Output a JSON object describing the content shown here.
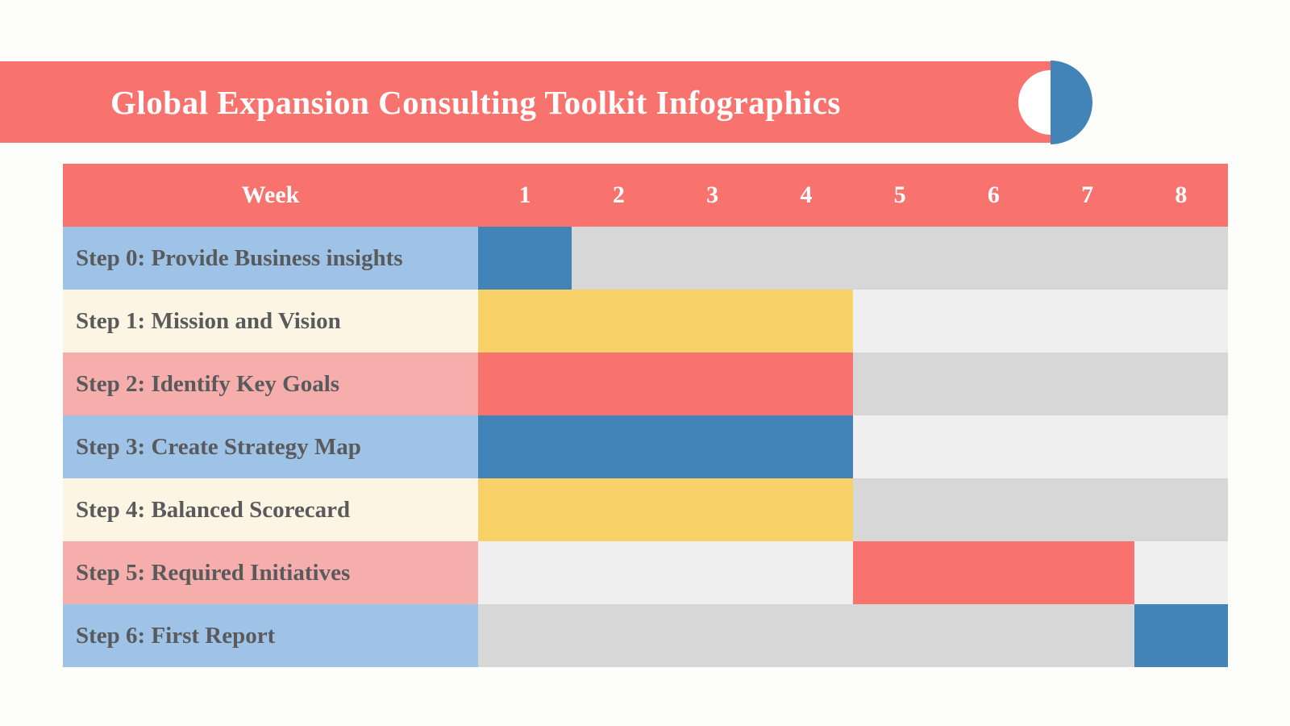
{
  "page": {
    "background": "#FDFDFC"
  },
  "banner": {
    "title": "Global Expansion Consulting Toolkit Infographics",
    "background": "#F9736E",
    "text_color": "#FFFFFF",
    "decoration": {
      "blue_half_circle_color": "#4284B8",
      "white_half_circle_color": "#FFFFFF"
    }
  },
  "colors": {
    "coral": "#F9736E",
    "steel_blue": "#4284B8",
    "light_blue": "#9FC3E6",
    "yellow": "#F9D169",
    "pink": "#F5AEAB",
    "cream": "#FCF5E3",
    "gray_dark": "#D7D7D7",
    "gray_light": "#EFEFEF",
    "label_text": "#595A5C",
    "header_text": "#FFFFFF"
  },
  "table": {
    "header": {
      "label": "Week",
      "weeks": [
        "1",
        "2",
        "3",
        "4",
        "5",
        "6",
        "7",
        "8"
      ],
      "background": "#F9736E",
      "text_color": "#FFFFFF"
    },
    "rows": [
      {
        "label": "Step 0: Provide Business insights",
        "label_bg": "#9FC3E6",
        "track_bg": "#D7D7D7",
        "bar_color": "#4284B8",
        "start_week": 1,
        "end_week": 1
      },
      {
        "label": "Step 1: Mission and Vision",
        "label_bg": "#FCF5E3",
        "track_bg": "#EFEFEF",
        "bar_color": "#F9D169",
        "start_week": 1,
        "end_week": 4
      },
      {
        "label": "Step 2: Identify Key Goals",
        "label_bg": "#F5AEAB",
        "track_bg": "#D7D7D7",
        "bar_color": "#F9736E",
        "start_week": 1,
        "end_week": 4
      },
      {
        "label": "Step 3: Create Strategy Map",
        "label_bg": "#9FC3E6",
        "track_bg": "#EFEFEF",
        "bar_color": "#4284B8",
        "start_week": 1,
        "end_week": 4
      },
      {
        "label": "Step 4: Balanced Scorecard",
        "label_bg": "#FCF5E3",
        "track_bg": "#D7D7D7",
        "bar_color": "#F9D169",
        "start_week": 1,
        "end_week": 4
      },
      {
        "label": "Step 5: Required Initiatives",
        "label_bg": "#F5AEAB",
        "track_bg": "#EFEFEF",
        "bar_color": "#F9736E",
        "start_week": 5,
        "end_week": 7
      },
      {
        "label": "Step 6: First Report",
        "label_bg": "#9FC3E6",
        "track_bg": "#D7D7D7",
        "bar_color": "#4284B8",
        "start_week": 8,
        "end_week": 8
      }
    ]
  },
  "chart_data": {
    "type": "bar",
    "subtype": "gantt",
    "title": "Global Expansion Consulting Toolkit Infographics",
    "xlabel": "Week",
    "ylabel": "",
    "x_ticks": [
      1,
      2,
      3,
      4,
      5,
      6,
      7,
      8
    ],
    "xlim": [
      1,
      8
    ],
    "grid": false,
    "legend": false,
    "categories": [
      "Step 0: Provide Business insights",
      "Step 1: Mission and Vision",
      "Step 2: Identify Key Goals",
      "Step 3: Create Strategy Map",
      "Step 4: Balanced Scorecard",
      "Step 5: Required Initiatives",
      "Step 6: First Report"
    ],
    "tasks": [
      {
        "task": "Step 0: Provide Business insights",
        "start_week": 1,
        "end_week": 1,
        "duration_weeks": 1,
        "bar_color": "#4284B8"
      },
      {
        "task": "Step 1: Mission and Vision",
        "start_week": 1,
        "end_week": 4,
        "duration_weeks": 4,
        "bar_color": "#F9D169"
      },
      {
        "task": "Step 2: Identify Key Goals",
        "start_week": 1,
        "end_week": 4,
        "duration_weeks": 4,
        "bar_color": "#F9736E"
      },
      {
        "task": "Step 3: Create Strategy Map",
        "start_week": 1,
        "end_week": 4,
        "duration_weeks": 4,
        "bar_color": "#4284B8"
      },
      {
        "task": "Step 4: Balanced Scorecard",
        "start_week": 1,
        "end_week": 4,
        "duration_weeks": 4,
        "bar_color": "#F9D169"
      },
      {
        "task": "Step 5: Required Initiatives",
        "start_week": 5,
        "end_week": 7,
        "duration_weeks": 3,
        "bar_color": "#F9736E"
      },
      {
        "task": "Step 6: First Report",
        "start_week": 8,
        "end_week": 8,
        "duration_weeks": 1,
        "bar_color": "#4284B8"
      }
    ]
  }
}
